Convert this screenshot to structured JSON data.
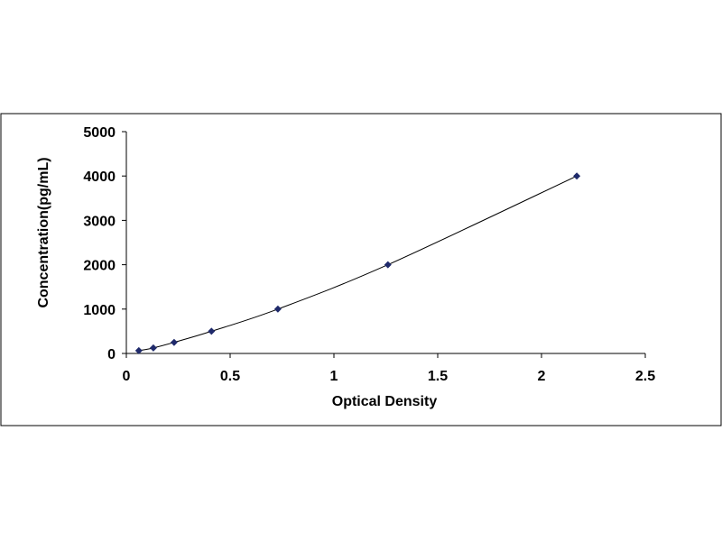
{
  "chart_data": {
    "type": "scatter",
    "title": "",
    "xlabel": "Optical Density",
    "ylabel": "Concentration(pg/mL)",
    "xlim": [
      0,
      2.5
    ],
    "ylim": [
      0,
      5000
    ],
    "x_ticks": [
      "0",
      "0.5",
      "1",
      "1.5",
      "2",
      "2.5"
    ],
    "y_ticks": [
      "0",
      "1000",
      "2000",
      "3000",
      "4000",
      "5000"
    ],
    "grid": false,
    "legend": "none",
    "trendline": "smooth curve through points",
    "series": [
      {
        "x": [
          0.06,
          0.13,
          0.23,
          0.41,
          0.73,
          1.26,
          2.17
        ],
        "y": [
          62.5,
          125,
          250,
          500,
          1000,
          2000,
          4000
        ]
      }
    ],
    "colors": {
      "marker": "#1f2a6b",
      "line": "#000000",
      "frame": "#000000"
    }
  }
}
